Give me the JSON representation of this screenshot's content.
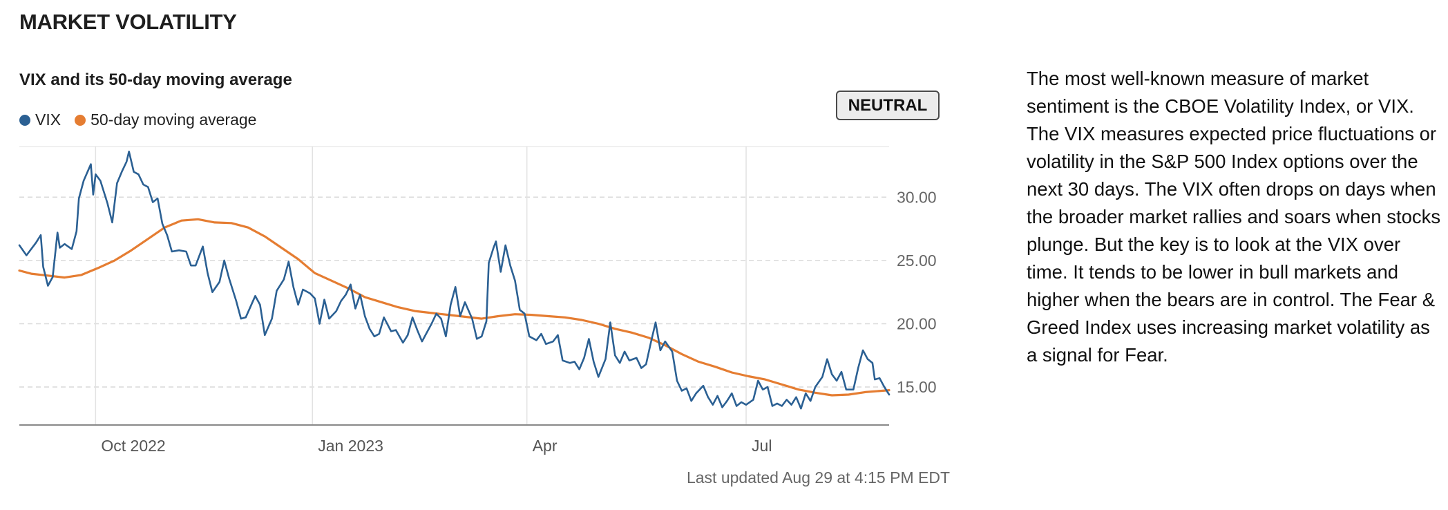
{
  "header": {
    "section_title": "MARKET VOLATILITY",
    "chart_title": "VIX and its 50-day moving average",
    "status_badge": "NEUTRAL"
  },
  "legend": [
    {
      "label": "VIX",
      "color": "#2b6093"
    },
    {
      "label": "50-day moving average",
      "color": "#e57d32"
    }
  ],
  "footer": {
    "last_updated": "Last updated Aug 29 at 4:15 PM EDT"
  },
  "description": "The most well-known measure of market sentiment is the CBOE Volatility Index, or VIX. The VIX measures expected price fluctuations or volatility in the S&P 500 Index options over the next 30 days. The VIX often drops on days when the broader market rallies and soars when stocks plunge. But the key is to look at the VIX over time. It tends to be lower in bull markets and higher when the bears are in control. The Fear & Greed Index uses increasing market volatility as a signal for Fear.",
  "chart_data": {
    "type": "line",
    "title": "VIX and its 50-day moving average",
    "xlabel": "",
    "ylabel": "",
    "x_range": [
      "2022-08-29",
      "2023-08-29"
    ],
    "ylim": [
      12.0,
      34.0
    ],
    "yticks": [
      15,
      20,
      25,
      30
    ],
    "ytick_labels": [
      "15.00",
      "20.00",
      "25.00",
      "30.00"
    ],
    "xticks": [
      {
        "date": "2022-09-30",
        "label": "Oct 2022"
      },
      {
        "date": "2022-12-30",
        "label": "Jan 2023"
      },
      {
        "date": "2023-03-30",
        "label": "Apr"
      },
      {
        "date": "2023-06-30",
        "label": "Jul"
      }
    ],
    "grid": true,
    "series": [
      {
        "name": "VIX",
        "color": "#2b6093",
        "points": [
          [
            "2022-08-29",
            26.2
          ],
          [
            "2022-09-01",
            25.4
          ],
          [
            "2022-09-05",
            26.4
          ],
          [
            "2022-09-07",
            27.0
          ],
          [
            "2022-09-08",
            24.5
          ],
          [
            "2022-09-10",
            23.0
          ],
          [
            "2022-09-12",
            23.7
          ],
          [
            "2022-09-14",
            27.2
          ],
          [
            "2022-09-15",
            26.0
          ],
          [
            "2022-09-17",
            26.3
          ],
          [
            "2022-09-20",
            25.9
          ],
          [
            "2022-09-22",
            27.3
          ],
          [
            "2022-09-23",
            29.9
          ],
          [
            "2022-09-25",
            31.3
          ],
          [
            "2022-09-28",
            32.6
          ],
          [
            "2022-09-29",
            30.2
          ],
          [
            "2022-09-30",
            31.8
          ],
          [
            "2022-10-02",
            31.3
          ],
          [
            "2022-10-05",
            29.5
          ],
          [
            "2022-10-07",
            28.0
          ],
          [
            "2022-10-09",
            31.1
          ],
          [
            "2022-10-11",
            32.0
          ],
          [
            "2022-10-13",
            32.8
          ],
          [
            "2022-10-14",
            33.6
          ],
          [
            "2022-10-16",
            32.0
          ],
          [
            "2022-10-18",
            31.8
          ],
          [
            "2022-10-20",
            31.0
          ],
          [
            "2022-10-22",
            30.8
          ],
          [
            "2022-10-24",
            29.6
          ],
          [
            "2022-10-26",
            29.9
          ],
          [
            "2022-10-28",
            27.9
          ],
          [
            "2022-10-30",
            27.0
          ],
          [
            "2022-11-01",
            25.7
          ],
          [
            "2022-11-04",
            25.8
          ],
          [
            "2022-11-07",
            25.7
          ],
          [
            "2022-11-09",
            24.6
          ],
          [
            "2022-11-11",
            24.6
          ],
          [
            "2022-11-14",
            26.1
          ],
          [
            "2022-11-16",
            24.0
          ],
          [
            "2022-11-18",
            22.5
          ],
          [
            "2022-11-21",
            23.3
          ],
          [
            "2022-11-23",
            25.0
          ],
          [
            "2022-11-25",
            23.6
          ],
          [
            "2022-11-28",
            21.8
          ],
          [
            "2022-11-30",
            20.4
          ],
          [
            "2022-12-02",
            20.5
          ],
          [
            "2022-12-06",
            22.2
          ],
          [
            "2022-12-08",
            21.5
          ],
          [
            "2022-12-10",
            19.1
          ],
          [
            "2022-12-13",
            20.4
          ],
          [
            "2022-12-15",
            22.6
          ],
          [
            "2022-12-18",
            23.5
          ],
          [
            "2022-12-20",
            24.9
          ],
          [
            "2022-12-22",
            22.9
          ],
          [
            "2022-12-24",
            21.5
          ],
          [
            "2022-12-26",
            22.7
          ],
          [
            "2022-12-29",
            22.4
          ],
          [
            "2022-12-31",
            22.0
          ],
          [
            "2023-01-02",
            20.0
          ],
          [
            "2023-01-04",
            21.9
          ],
          [
            "2023-01-06",
            20.4
          ],
          [
            "2023-01-09",
            21.0
          ],
          [
            "2023-01-11",
            21.8
          ],
          [
            "2023-01-13",
            22.3
          ],
          [
            "2023-01-15",
            23.1
          ],
          [
            "2023-01-17",
            21.2
          ],
          [
            "2023-01-19",
            22.3
          ],
          [
            "2023-01-21",
            20.6
          ],
          [
            "2023-01-23",
            19.6
          ],
          [
            "2023-01-25",
            19.0
          ],
          [
            "2023-01-27",
            19.2
          ],
          [
            "2023-01-29",
            20.5
          ],
          [
            "2023-02-01",
            19.4
          ],
          [
            "2023-02-03",
            19.5
          ],
          [
            "2023-02-06",
            18.5
          ],
          [
            "2023-02-08",
            19.1
          ],
          [
            "2023-02-10",
            20.5
          ],
          [
            "2023-02-12",
            19.5
          ],
          [
            "2023-02-14",
            18.6
          ],
          [
            "2023-02-16",
            19.3
          ],
          [
            "2023-02-18",
            20.0
          ],
          [
            "2023-02-20",
            20.8
          ],
          [
            "2023-02-22",
            20.4
          ],
          [
            "2023-02-24",
            19.0
          ],
          [
            "2023-02-26",
            21.5
          ],
          [
            "2023-02-28",
            22.9
          ],
          [
            "2023-03-02",
            20.6
          ],
          [
            "2023-03-04",
            21.7
          ],
          [
            "2023-03-07",
            20.4
          ],
          [
            "2023-03-09",
            18.8
          ],
          [
            "2023-03-11",
            19.0
          ],
          [
            "2023-03-13",
            20.2
          ],
          [
            "2023-03-14",
            24.8
          ],
          [
            "2023-03-16",
            26.0
          ],
          [
            "2023-03-17",
            26.5
          ],
          [
            "2023-03-19",
            24.1
          ],
          [
            "2023-03-21",
            26.2
          ],
          [
            "2023-03-23",
            24.6
          ],
          [
            "2023-03-25",
            23.4
          ],
          [
            "2023-03-27",
            21.1
          ],
          [
            "2023-03-29",
            20.8
          ],
          [
            "2023-03-31",
            19.0
          ],
          [
            "2023-04-03",
            18.7
          ],
          [
            "2023-04-05",
            19.2
          ],
          [
            "2023-04-07",
            18.4
          ],
          [
            "2023-04-10",
            18.6
          ],
          [
            "2023-04-12",
            19.1
          ],
          [
            "2023-04-14",
            17.1
          ],
          [
            "2023-04-17",
            16.9
          ],
          [
            "2023-04-19",
            17.0
          ],
          [
            "2023-04-21",
            16.4
          ],
          [
            "2023-04-23",
            17.3
          ],
          [
            "2023-04-25",
            18.8
          ],
          [
            "2023-04-27",
            17.0
          ],
          [
            "2023-04-29",
            15.8
          ],
          [
            "2023-05-02",
            17.2
          ],
          [
            "2023-05-04",
            20.1
          ],
          [
            "2023-05-06",
            17.5
          ],
          [
            "2023-05-08",
            16.9
          ],
          [
            "2023-05-10",
            17.8
          ],
          [
            "2023-05-12",
            17.1
          ],
          [
            "2023-05-15",
            17.3
          ],
          [
            "2023-05-17",
            16.5
          ],
          [
            "2023-05-19",
            16.8
          ],
          [
            "2023-05-21",
            18.5
          ],
          [
            "2023-05-23",
            20.1
          ],
          [
            "2023-05-25",
            17.9
          ],
          [
            "2023-05-27",
            18.6
          ],
          [
            "2023-05-30",
            17.8
          ],
          [
            "2023-06-01",
            15.5
          ],
          [
            "2023-06-03",
            14.7
          ],
          [
            "2023-06-05",
            14.9
          ],
          [
            "2023-06-07",
            13.9
          ],
          [
            "2023-06-09",
            14.5
          ],
          [
            "2023-06-12",
            15.1
          ],
          [
            "2023-06-14",
            14.2
          ],
          [
            "2023-06-16",
            13.6
          ],
          [
            "2023-06-18",
            14.3
          ],
          [
            "2023-06-20",
            13.4
          ],
          [
            "2023-06-22",
            13.9
          ],
          [
            "2023-06-24",
            14.5
          ],
          [
            "2023-06-26",
            13.5
          ],
          [
            "2023-06-28",
            13.8
          ],
          [
            "2023-06-30",
            13.6
          ],
          [
            "2023-07-03",
            14.0
          ],
          [
            "2023-07-05",
            15.5
          ],
          [
            "2023-07-07",
            14.8
          ],
          [
            "2023-07-09",
            15.0
          ],
          [
            "2023-07-11",
            13.5
          ],
          [
            "2023-07-13",
            13.7
          ],
          [
            "2023-07-15",
            13.5
          ],
          [
            "2023-07-17",
            14.0
          ],
          [
            "2023-07-19",
            13.6
          ],
          [
            "2023-07-21",
            14.2
          ],
          [
            "2023-07-23",
            13.3
          ],
          [
            "2023-07-25",
            14.5
          ],
          [
            "2023-07-27",
            13.9
          ],
          [
            "2023-07-29",
            15.0
          ],
          [
            "2023-08-01",
            15.8
          ],
          [
            "2023-08-03",
            17.2
          ],
          [
            "2023-08-05",
            16.0
          ],
          [
            "2023-08-07",
            15.5
          ],
          [
            "2023-08-09",
            16.2
          ],
          [
            "2023-08-11",
            14.8
          ],
          [
            "2023-08-14",
            14.8
          ],
          [
            "2023-08-16",
            16.5
          ],
          [
            "2023-08-18",
            17.9
          ],
          [
            "2023-08-20",
            17.2
          ],
          [
            "2023-08-22",
            16.9
          ],
          [
            "2023-08-23",
            15.6
          ],
          [
            "2023-08-25",
            15.7
          ],
          [
            "2023-08-27",
            15.0
          ],
          [
            "2023-08-29",
            14.4
          ]
        ]
      },
      {
        "name": "50-day moving average",
        "color": "#e57d32",
        "points": [
          [
            "2022-08-29",
            24.2
          ],
          [
            "2022-09-03",
            23.95
          ],
          [
            "2022-09-10",
            23.8
          ],
          [
            "2022-09-17",
            23.65
          ],
          [
            "2022-09-24",
            23.85
          ],
          [
            "2022-10-01",
            24.4
          ],
          [
            "2022-10-08",
            25.0
          ],
          [
            "2022-10-15",
            25.8
          ],
          [
            "2022-10-22",
            26.7
          ],
          [
            "2022-10-29",
            27.6
          ],
          [
            "2022-11-05",
            28.15
          ],
          [
            "2022-11-12",
            28.25
          ],
          [
            "2022-11-19",
            28.0
          ],
          [
            "2022-11-26",
            27.95
          ],
          [
            "2022-12-03",
            27.6
          ],
          [
            "2022-12-10",
            26.9
          ],
          [
            "2022-12-17",
            26.0
          ],
          [
            "2022-12-24",
            25.1
          ],
          [
            "2022-12-31",
            24.0
          ],
          [
            "2023-01-07",
            23.4
          ],
          [
            "2023-01-14",
            22.8
          ],
          [
            "2023-01-21",
            22.1
          ],
          [
            "2023-01-28",
            21.7
          ],
          [
            "2023-02-04",
            21.3
          ],
          [
            "2023-02-11",
            21.0
          ],
          [
            "2023-02-18",
            20.85
          ],
          [
            "2023-02-25",
            20.7
          ],
          [
            "2023-03-04",
            20.55
          ],
          [
            "2023-03-11",
            20.4
          ],
          [
            "2023-03-18",
            20.6
          ],
          [
            "2023-03-25",
            20.75
          ],
          [
            "2023-04-01",
            20.7
          ],
          [
            "2023-04-08",
            20.6
          ],
          [
            "2023-04-15",
            20.5
          ],
          [
            "2023-04-22",
            20.3
          ],
          [
            "2023-04-29",
            20.0
          ],
          [
            "2023-05-06",
            19.6
          ],
          [
            "2023-05-13",
            19.3
          ],
          [
            "2023-05-20",
            18.9
          ],
          [
            "2023-05-27",
            18.3
          ],
          [
            "2023-06-03",
            17.6
          ],
          [
            "2023-06-10",
            17.0
          ],
          [
            "2023-06-17",
            16.6
          ],
          [
            "2023-06-24",
            16.15
          ],
          [
            "2023-07-01",
            15.85
          ],
          [
            "2023-07-08",
            15.6
          ],
          [
            "2023-07-15",
            15.2
          ],
          [
            "2023-07-22",
            14.8
          ],
          [
            "2023-07-29",
            14.55
          ],
          [
            "2023-08-05",
            14.35
          ],
          [
            "2023-08-12",
            14.4
          ],
          [
            "2023-08-19",
            14.6
          ],
          [
            "2023-08-26",
            14.7
          ],
          [
            "2023-08-29",
            14.75
          ]
        ]
      }
    ]
  }
}
